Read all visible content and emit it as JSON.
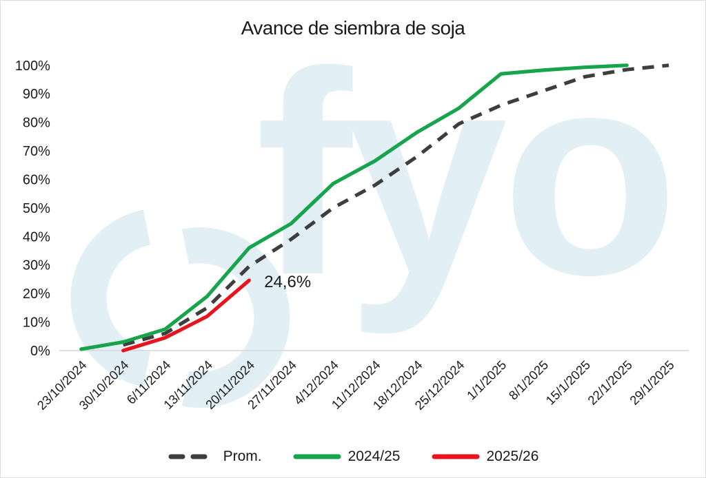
{
  "title": "Avance de siembra de soja",
  "watermark": {
    "text": "fyo",
    "color": "#E2EFF5"
  },
  "y_axis": {
    "ticks": [
      "0%",
      "10%",
      "20%",
      "30%",
      "40%",
      "50%",
      "60%",
      "70%",
      "80%",
      "90%",
      "100%"
    ]
  },
  "chart_data": {
    "type": "line",
    "title": "Avance de siembra de soja",
    "categories": [
      "23/10/2024",
      "30/10/2024",
      "6/11/2024",
      "13/11/2024",
      "20/11/2024",
      "27/11/2024",
      "4/12/2024",
      "11/12/2024",
      "18/12/2024",
      "25/12/2024",
      "1/1/2025",
      "8/1/2025",
      "15/1/2025",
      "22/1/2025",
      "29/1/2025"
    ],
    "ylabel": "",
    "xlabel": "",
    "ylim": [
      0,
      100
    ],
    "ytick_step": 10,
    "grid": false,
    "legend_position": "bottom",
    "series": [
      {
        "name": "Prom.",
        "style": "dashed",
        "color": "#3E3E3E",
        "values": [
          null,
          2,
          6,
          15,
          29.5,
          39,
          50,
          58,
          68,
          79.5,
          86,
          91,
          96,
          98.5,
          100
        ]
      },
      {
        "name": "2024/25",
        "style": "solid",
        "color": "#16A44C",
        "values": [
          0.5,
          3,
          7.5,
          19,
          36,
          44.5,
          58.5,
          66.5,
          76.5,
          85,
          97,
          98.3,
          99.3,
          100,
          null
        ]
      },
      {
        "name": "2025/26",
        "style": "solid",
        "color": "#E9131D",
        "values": [
          null,
          0,
          4.5,
          12,
          24.6,
          null,
          null,
          null,
          null,
          null,
          null,
          null,
          null,
          null,
          null
        ]
      }
    ],
    "annotation": {
      "text": "24,6%",
      "series": "2025/26",
      "category": "20/11/2024"
    }
  }
}
